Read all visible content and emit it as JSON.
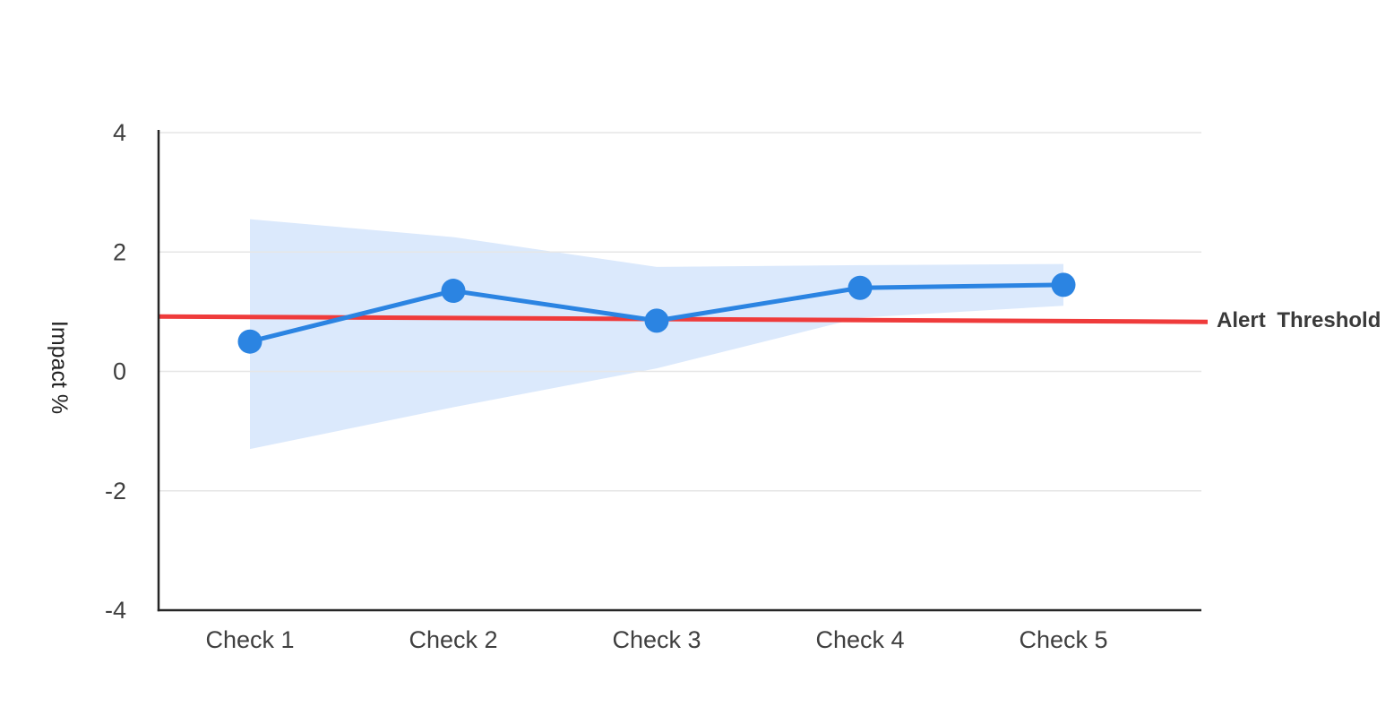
{
  "chart_data": {
    "type": "line",
    "title": "",
    "categories": [
      "Check 1",
      "Check 2",
      "Check 3",
      "Check 4",
      "Check 5"
    ],
    "series": [
      {
        "name": "Impact",
        "values": [
          0.5,
          1.35,
          0.85,
          1.4,
          1.45
        ],
        "marker": "circle"
      }
    ],
    "band": {
      "name": "confidence-band",
      "upper": [
        2.55,
        2.25,
        1.75,
        1.78,
        1.8
      ],
      "lower": [
        -1.3,
        -0.6,
        0.05,
        0.9,
        1.1
      ]
    },
    "threshold": {
      "label": "Alert Threshold",
      "start_value": 0.92,
      "end_value": 0.83
    },
    "ylabel": "Impact %",
    "xlabel": "",
    "ylim": [
      -4,
      4
    ],
    "yticks": [
      4,
      2,
      0,
      -2,
      -4
    ],
    "grid": true,
    "legend_position": "none",
    "colors": {
      "line": "#2B84E2",
      "marker": "#2B84E2",
      "band": "#DBE9FC",
      "threshold": "#EF3B3B",
      "axis": "#262626",
      "grid": "#E6E6E6",
      "tick_text": "#3F3F3F",
      "category_text": "#3F3F3F",
      "ylabel_text": "#222222",
      "threshold_text": "#3A3A3A"
    }
  }
}
